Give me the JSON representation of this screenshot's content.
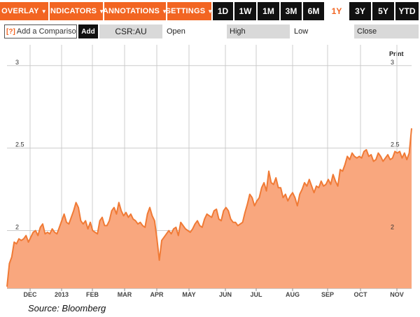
{
  "toolbar": {
    "menus": [
      {
        "label": "OVERLAY",
        "arrow": "▼"
      },
      {
        "label": "INDICATORS",
        "arrow": "▼"
      },
      {
        "label": "ANNOTATIONS",
        "arrow": "▼"
      },
      {
        "label": "SETTINGS",
        "arrow": "▼"
      }
    ],
    "ranges": [
      "1D",
      "1W",
      "1M",
      "3M",
      "6M",
      "1Y",
      "3Y",
      "5Y",
      "YTD"
    ],
    "active_range": "1Y"
  },
  "compare": {
    "help_label": "[?]",
    "placeholder": "Add a Comparison",
    "add_label": "Add"
  },
  "quote": {
    "ticker": "CSR:AU",
    "open_label": "Open",
    "high_label": "High",
    "low_label": "Low",
    "close_label": "Close"
  },
  "print_label": "Print",
  "source_label": "Source: Bloomberg",
  "colors": {
    "accent": "#f26522",
    "fill": "#f9a77e",
    "line": "#f07a35",
    "grid": "#cccccc"
  },
  "chart_data": {
    "type": "area",
    "title": "",
    "ylim": [
      1.65,
      3.05
    ],
    "y_ticks": [
      2,
      2.5,
      3
    ],
    "y_tick_labels": [
      "2",
      "2.5",
      "3"
    ],
    "x_tick_labels": [
      "DEC",
      "2013",
      "FEB",
      "MAR",
      "APR",
      "MAY",
      "JUN",
      "JUL",
      "AUG",
      "SEP",
      "OCT",
      "NOV"
    ],
    "grid": true,
    "series": [
      {
        "values": [
          1.66,
          1.8,
          1.84,
          1.93,
          1.92,
          1.95,
          1.94,
          1.95,
          1.97,
          1.93,
          1.96,
          1.99,
          2.0,
          1.97,
          2.02,
          2.04,
          1.98,
          1.99,
          1.98,
          2.01,
          1.99,
          1.98,
          2.02,
          2.06,
          2.1,
          2.05,
          2.04,
          2.08,
          2.12,
          2.17,
          2.14,
          2.06,
          2.04,
          2.06,
          2.01,
          2.05,
          2.0,
          1.99,
          1.98,
          2.06,
          2.08,
          2.03,
          2.03,
          2.06,
          2.12,
          2.14,
          2.1,
          2.17,
          2.12,
          2.09,
          2.11,
          2.08,
          2.1,
          2.07,
          2.06,
          2.04,
          2.05,
          2.03,
          2.02,
          2.1,
          2.14,
          2.09,
          2.06,
          1.95,
          1.82,
          1.94,
          1.96,
          1.98,
          2.0,
          1.98,
          2.01,
          2.02,
          1.97,
          2.05,
          2.03,
          2.01,
          2.0,
          1.99,
          2.01,
          2.04,
          2.06,
          2.03,
          2.02,
          2.07,
          2.1,
          2.09,
          2.08,
          2.12,
          2.13,
          2.07,
          2.06,
          2.12,
          2.14,
          2.12,
          2.07,
          2.05,
          2.05,
          2.03,
          2.04,
          2.05,
          2.11,
          2.16,
          2.22,
          2.2,
          2.15,
          2.18,
          2.2,
          2.26,
          2.29,
          2.24,
          2.36,
          2.29,
          2.28,
          2.32,
          2.26,
          2.26,
          2.2,
          2.22,
          2.18,
          2.21,
          2.23,
          2.2,
          2.15,
          2.22,
          2.25,
          2.29,
          2.27,
          2.31,
          2.27,
          2.23,
          2.27,
          2.26,
          2.3,
          2.27,
          2.28,
          2.31,
          2.28,
          2.34,
          2.3,
          2.27,
          2.37,
          2.36,
          2.4,
          2.45,
          2.43,
          2.47,
          2.45,
          2.44,
          2.45,
          2.44,
          2.48,
          2.49,
          2.45,
          2.46,
          2.42,
          2.43,
          2.47,
          2.45,
          2.42,
          2.44,
          2.46,
          2.43,
          2.44,
          2.48,
          2.47,
          2.48,
          2.44,
          2.47,
          2.43,
          2.47,
          2.62
        ]
      }
    ]
  }
}
